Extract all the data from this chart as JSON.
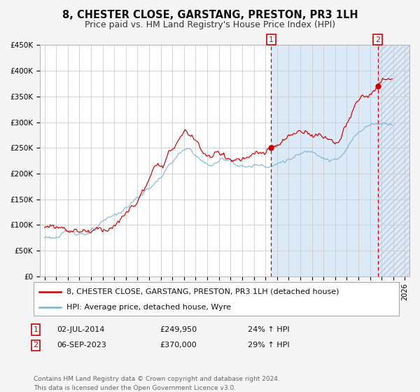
{
  "title": "8, CHESTER CLOSE, GARSTANG, PRESTON, PR3 1LH",
  "subtitle": "Price paid vs. HM Land Registry's House Price Index (HPI)",
  "ylim": [
    0,
    450000
  ],
  "xlim_start": 1994.6,
  "xlim_end": 2026.4,
  "yticks": [
    0,
    50000,
    100000,
    150000,
    200000,
    250000,
    300000,
    350000,
    400000,
    450000
  ],
  "ytick_labels": [
    "£0",
    "£50K",
    "£100K",
    "£150K",
    "£200K",
    "£250K",
    "£300K",
    "£350K",
    "£400K",
    "£450K"
  ],
  "xtick_years": [
    1995,
    1996,
    1997,
    1998,
    1999,
    2000,
    2001,
    2002,
    2003,
    2004,
    2005,
    2006,
    2007,
    2008,
    2009,
    2010,
    2011,
    2012,
    2013,
    2014,
    2015,
    2016,
    2017,
    2018,
    2019,
    2020,
    2021,
    2022,
    2023,
    2024,
    2025,
    2026
  ],
  "grid_color": "#cccccc",
  "background_color": "#f5f5f5",
  "plot_bg_color": "#ffffff",
  "shade_color": "#dce9f7",
  "red_line_color": "#cc0000",
  "blue_line_color": "#7ab0d4",
  "dashed_vline_color": "#cc0000",
  "sale1_date": 2014.5,
  "sale1_price": 249950,
  "sale1_label": "1",
  "sale2_date": 2023.67,
  "sale2_price": 370000,
  "sale2_label": "2",
  "legend_line1": "8, CHESTER CLOSE, GARSTANG, PRESTON, PR3 1LH (detached house)",
  "legend_line2": "HPI: Average price, detached house, Wyre",
  "annotation1_date": "02-JUL-2014",
  "annotation1_price": "£249,950",
  "annotation1_hpi": "24% ↑ HPI",
  "annotation2_date": "06-SEP-2023",
  "annotation2_price": "£370,000",
  "annotation2_hpi": "29% ↑ HPI",
  "footer": "Contains HM Land Registry data © Crown copyright and database right 2024.\nThis data is licensed under the Open Government Licence v3.0.",
  "title_fontsize": 10.5,
  "subtitle_fontsize": 9,
  "tick_fontsize": 7.5,
  "legend_fontsize": 8,
  "annotation_fontsize": 8,
  "footer_fontsize": 6.5
}
